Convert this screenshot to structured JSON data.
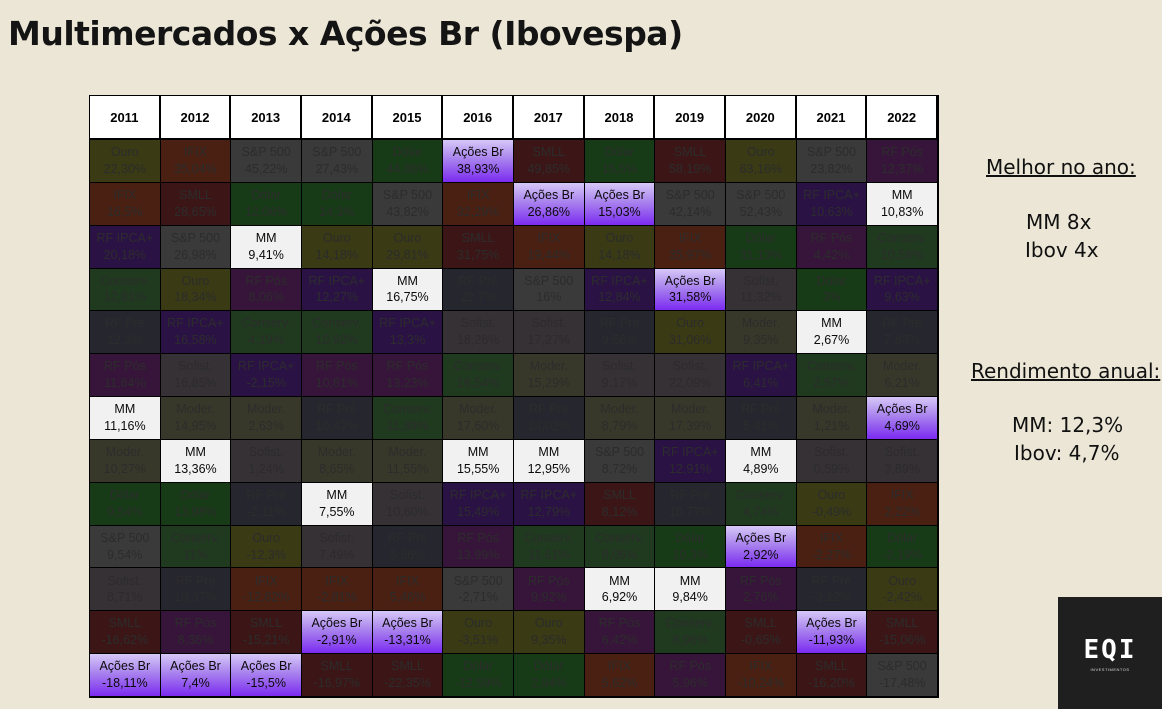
{
  "title": "Multimercados x Ações Br (Ibovespa)",
  "years": [
    "2011",
    "2012",
    "2013",
    "2014",
    "2015",
    "2016",
    "2017",
    "2018",
    "2019",
    "2020",
    "2021",
    "2022"
  ],
  "colors": {
    "Ouro": "#3a3a14",
    "IFIX": "#4a2012",
    "S&P 500": "#3a3a3a",
    "Dólar": "#173a17",
    "Ações Br": "#9e72ea",
    "SMLL": "#3c1616",
    "RF Pós": "#37153a",
    "MM": "#f1f1f1",
    "RF IPCA+": "#2b1245",
    "Conserv.": "#1f3a1f",
    "RF Pré": "#26262e",
    "Sofist.": "#353135",
    "Moder.": "#38382a"
  },
  "columns": [
    [
      [
        "Ouro",
        "22,30%"
      ],
      [
        "IFIX",
        "16,5%"
      ],
      [
        "RF IPCA+",
        "20,18%"
      ],
      [
        "Conserv.",
        "12,81%"
      ],
      [
        "RF Pré",
        "12,3%"
      ],
      [
        "RF Pós",
        "11,64%"
      ],
      [
        "MM",
        "11,16%"
      ],
      [
        "Moder.",
        "10,27%"
      ],
      [
        "Dólar",
        "9,54%"
      ],
      [
        "S&P 500",
        "9,54%"
      ],
      [
        "Sofist.",
        "8,71%"
      ],
      [
        "SMLL",
        "-16,62%"
      ],
      [
        "Ações Br",
        "-18,11%"
      ]
    ],
    [
      [
        "IFIX",
        "35,04%"
      ],
      [
        "SMLL",
        "28,65%"
      ],
      [
        "S&P 500",
        "26,98%"
      ],
      [
        "Ouro",
        "18,34%"
      ],
      [
        "RF IPCA+",
        "16,58%"
      ],
      [
        "Sofist.",
        "16,85%"
      ],
      [
        "Moder.",
        "14,95%"
      ],
      [
        "MM",
        "13,36%"
      ],
      [
        "Dólar",
        "13,98%"
      ],
      [
        "Conserv.",
        "11%"
      ],
      [
        "RF Pré",
        "10,37%"
      ],
      [
        "RF Pós",
        "8,36%"
      ],
      [
        "Ações Br",
        "7,4%"
      ]
    ],
    [
      [
        "S&P 500",
        "45,22%"
      ],
      [
        "Dólar",
        "12,06%"
      ],
      [
        "MM",
        "9,41%"
      ],
      [
        "RF Pós",
        "8,06%"
      ],
      [
        "Conserv.",
        "4,19%"
      ],
      [
        "RF IPCA+",
        "-2,15%"
      ],
      [
        "Moder.",
        "2,63%"
      ],
      [
        "Sofist.",
        "1,24%"
      ],
      [
        "RF Pré",
        "-2,11%"
      ],
      [
        "Ouro",
        "-12,3%"
      ],
      [
        "IFIX",
        "-12,62%"
      ],
      [
        "SMLL",
        "-15,21%"
      ],
      [
        "Ações Br",
        "-15,5%"
      ]
    ],
    [
      [
        "S&P 500",
        "27,43%"
      ],
      [
        "Dólar",
        "14,3%"
      ],
      [
        "Ouro",
        "14,18%"
      ],
      [
        "RF IPCA+",
        "12,27%"
      ],
      [
        "Conserv.",
        "10,92%"
      ],
      [
        "RF Pós",
        "10,81%"
      ],
      [
        "RF Pré",
        "10,43%"
      ],
      [
        "Moder.",
        "8,65%"
      ],
      [
        "MM",
        "7,55%"
      ],
      [
        "Sofist.",
        "7,49%"
      ],
      [
        "IFIX",
        "-2,81%"
      ],
      [
        "Ações Br",
        "-2,91%"
      ],
      [
        "SMLL",
        "-16,97%"
      ]
    ],
    [
      [
        "Dólar",
        "44,86%"
      ],
      [
        "S&P 500",
        "43,82%"
      ],
      [
        "Ouro",
        "29,81%"
      ],
      [
        "MM",
        "16,75%"
      ],
      [
        "RF IPCA+",
        "13,3%"
      ],
      [
        "RF Pós",
        "13,23%"
      ],
      [
        "Conserv.",
        "11,89%"
      ],
      [
        "Moder.",
        "11,55%"
      ],
      [
        "Sofist.",
        "10,60%"
      ],
      [
        "RF Pré",
        "5,66%"
      ],
      [
        "IFIX",
        "5,46%"
      ],
      [
        "Ações Br",
        "-13,31%"
      ],
      [
        "SMLL",
        "-22,35%"
      ]
    ],
    [
      [
        "Ações Br",
        "38,93%"
      ],
      [
        "IFIX",
        "32,29%"
      ],
      [
        "SMLL",
        "31,75%"
      ],
      [
        "RF Pré",
        "22,7%"
      ],
      [
        "Sofist.",
        "18,26%"
      ],
      [
        "Conserv.",
        "16,54%"
      ],
      [
        "Moder.",
        "17,60%"
      ],
      [
        "MM",
        "15,55%"
      ],
      [
        "RF IPCA+",
        "15,49%"
      ],
      [
        "RF Pós",
        "13,99%"
      ],
      [
        "S&P 500",
        "-2,71%"
      ],
      [
        "Ouro",
        "-3,51%"
      ],
      [
        "Dólar",
        "-12,59%"
      ]
    ],
    [
      [
        "SMLL",
        "49,85%"
      ],
      [
        "Ações Br",
        "26,86%"
      ],
      [
        "IFIX",
        "19,44%"
      ],
      [
        "S&P 500",
        "16%"
      ],
      [
        "Sofist.",
        "17,27%"
      ],
      [
        "Moder.",
        "15,29%"
      ],
      [
        "RF Pré",
        "14,02%"
      ],
      [
        "MM",
        "12,95%"
      ],
      [
        "RF IPCA+",
        "12,79%"
      ],
      [
        "Conserv.",
        "11,61%"
      ],
      [
        "RF Pós",
        "9,92%"
      ],
      [
        "Ouro",
        "9,35%"
      ],
      [
        "Dólar",
        "2,94%"
      ]
    ],
    [
      [
        "Dólar",
        "15,5%"
      ],
      [
        "Ações Br",
        "15,03%"
      ],
      [
        "Ouro",
        "14,18%"
      ],
      [
        "RF IPCA+",
        "12,84%"
      ],
      [
        "RF Pré",
        "9,56%"
      ],
      [
        "Sofist.",
        "9,17%"
      ],
      [
        "Moder.",
        "8,79%"
      ],
      [
        "S&P 500",
        "8,72%"
      ],
      [
        "SMLL",
        "8,12%"
      ],
      [
        "Conserv.",
        "8,06%"
      ],
      [
        "MM",
        "6,92%"
      ],
      [
        "RF Pós",
        "6,42%"
      ],
      [
        "IFIX",
        "5,62%"
      ]
    ],
    [
      [
        "SMLL",
        "58,19%"
      ],
      [
        "S&P 500",
        "42,14%"
      ],
      [
        "IFIX",
        "35,97%"
      ],
      [
        "Ações Br",
        "31,58%"
      ],
      [
        "Ouro",
        "31,06%"
      ],
      [
        "Sofist.",
        "22,09%"
      ],
      [
        "Moder.",
        "17,39%"
      ],
      [
        "RF IPCA+",
        "12,91%"
      ],
      [
        "RF Pré",
        "10,77%"
      ],
      [
        "Dólar",
        "10,3%"
      ],
      [
        "MM",
        "9,84%"
      ],
      [
        "Conserv.",
        "8,96%"
      ],
      [
        "RF Pós",
        "5,96%"
      ]
    ],
    [
      [
        "Ouro",
        "63,16%"
      ],
      [
        "S&P 500",
        "52,43%"
      ],
      [
        "Dólar",
        "31,13%"
      ],
      [
        "Sofist.",
        "11,32%"
      ],
      [
        "Moder.",
        "9,35%"
      ],
      [
        "RF IPCA+",
        "6,41%"
      ],
      [
        "RF Pré",
        "5,41%"
      ],
      [
        "MM",
        "4,89%"
      ],
      [
        "Conserv.",
        "4,74%"
      ],
      [
        "Ações Br",
        "2,92%"
      ],
      [
        "RF Pós",
        "2,76%"
      ],
      [
        "SMLL",
        "-0,65%"
      ],
      [
        "IFIX",
        "-10,24%"
      ]
    ],
    [
      [
        "S&P 500",
        "23,82%"
      ],
      [
        "RF IPCA+",
        "10,63%"
      ],
      [
        "RF Pós",
        "4,42%"
      ],
      [
        "Dólar",
        "3%"
      ],
      [
        "MM",
        "2,67%"
      ],
      [
        "Conserv.",
        "2,57%"
      ],
      [
        "Moder.",
        "1,21%"
      ],
      [
        "Sofist.",
        "0,59%"
      ],
      [
        "Ouro",
        "-0,49%"
      ],
      [
        "IFIX",
        "-2,27%"
      ],
      [
        "RF Pré",
        "-3,12%"
      ],
      [
        "Ações Br",
        "-11,93%"
      ],
      [
        "SMLL",
        "-16,20%"
      ]
    ],
    [
      [
        "RF Pós",
        "12,37%"
      ],
      [
        "MM",
        "10,83%"
      ],
      [
        "Conserv.",
        "10,58%"
      ],
      [
        "RF IPCA+",
        "9,63%"
      ],
      [
        "RF Pré",
        "7,83%"
      ],
      [
        "Moder.",
        "6,21%"
      ],
      [
        "Ações Br",
        "4,69%"
      ],
      [
        "Sofist.",
        "3,89%"
      ],
      [
        "IFIX",
        "2,22%"
      ],
      [
        "Dólar",
        "-2,19%"
      ],
      [
        "Ouro",
        "-2,42%"
      ],
      [
        "SMLL",
        "-15,06%"
      ],
      [
        "S&P 500",
        "-17,48%"
      ]
    ]
  ],
  "side": {
    "best_title": "Melhor no ano:",
    "best_mm": "MM 8x",
    "best_ibov": "Ibov 4x",
    "yield_title": "Rendimento anual:",
    "yield_mm": "MM: 12,3%",
    "yield_ibov": "Ibov: 4,7%"
  },
  "logo": {
    "mark": "EQI",
    "sub": "INVESTIMENTOS"
  }
}
